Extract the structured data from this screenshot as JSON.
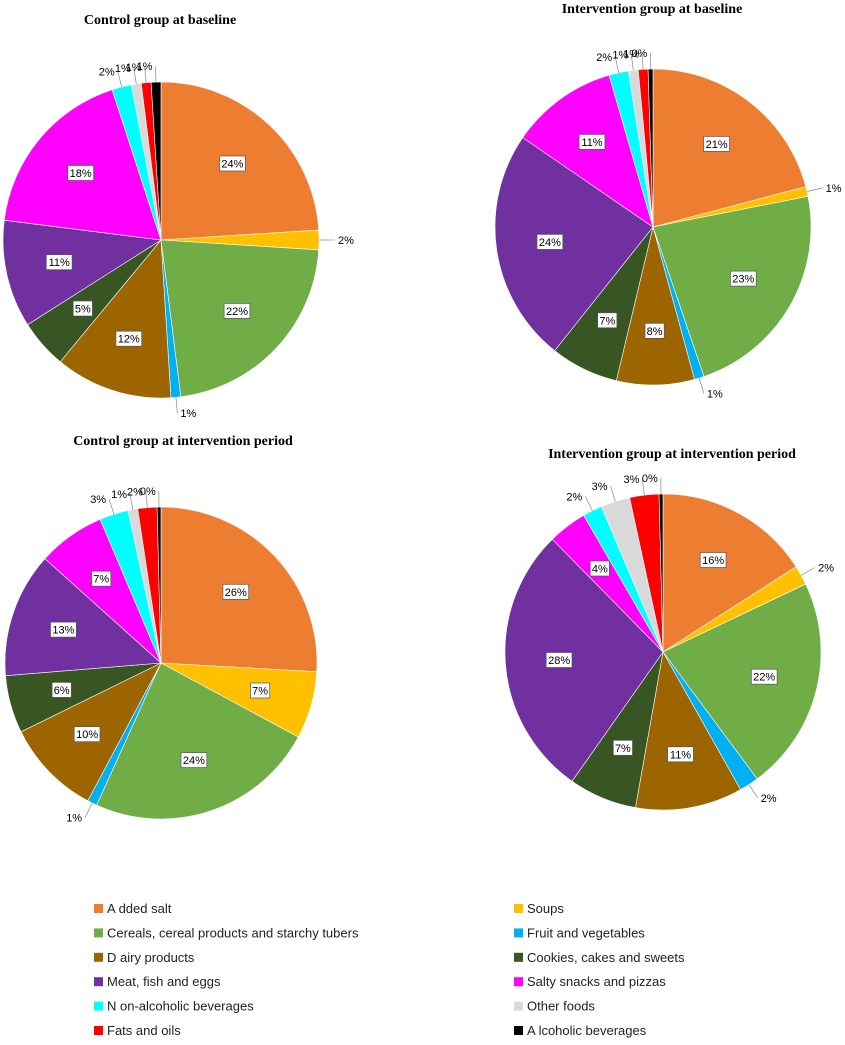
{
  "legend": {
    "categories": [
      {
        "name": "A dded salt",
        "color": "#ED7D31"
      },
      {
        "name": "Soups",
        "color": "#FFC000"
      },
      {
        "name": "Cereals, cereal products and starchy tubers",
        "color": "#70AD47"
      },
      {
        "name": "Fruit and vegetables",
        "color": "#00B0F0"
      },
      {
        "name": "D airy products",
        "color": "#9C6500"
      },
      {
        "name": "Cookies, cakes and sweets",
        "color": "#375623"
      },
      {
        "name": "Meat, fish and eggs",
        "color": "#7030A0"
      },
      {
        "name": "Salty snacks  and pizzas",
        "color": "#FF00FF"
      },
      {
        "name": "N on-alcoholic beverages",
        "color": "#00FFFF"
      },
      {
        "name": "Other foods",
        "color": "#D9D9D9"
      },
      {
        "name": "Fats and oils",
        "color": "#FF0000"
      },
      {
        "name": "A lcoholic beverages",
        "color": "#000000"
      }
    ]
  },
  "chart_data": [
    {
      "type": "pie",
      "title": "Control group at baseline",
      "values": [
        24,
        2,
        22,
        1,
        12,
        5,
        11,
        18,
        2,
        1,
        1,
        1
      ],
      "labels": [
        "24%",
        "2%",
        "22%",
        "1%",
        "12%",
        "5%",
        "11%",
        "18%",
        "2%",
        "1%",
        "1%",
        "1%"
      ]
    },
    {
      "type": "pie",
      "title": "Intervention group at baseline",
      "values": [
        21,
        1,
        23,
        1,
        8,
        7,
        24,
        11,
        2,
        1,
        1,
        0.5
      ],
      "labels": [
        "21%",
        "1%",
        "23%",
        "1%",
        "8%",
        "7%",
        "24%",
        "11%",
        "2%",
        "1%",
        "1%",
        "0%"
      ]
    },
    {
      "type": "pie",
      "title": "Control group at intervention period",
      "values": [
        26,
        7,
        24,
        1,
        10,
        6,
        13,
        7,
        3,
        1,
        2,
        0.4
      ],
      "labels": [
        "26%",
        "7%",
        "24%",
        "1%",
        "10%",
        "6%",
        "13%",
        "7%",
        "3%",
        "1%",
        "2%",
        "0%"
      ]
    },
    {
      "type": "pie",
      "title": "Intervention group at intervention period",
      "values": [
        16,
        2,
        22,
        2,
        11,
        7,
        28,
        4,
        2,
        3,
        3,
        0.4
      ],
      "labels": [
        "16%",
        "2%",
        "22%",
        "2%",
        "11%",
        "7%",
        "28%",
        "4%",
        "2%",
        "3%",
        "3%",
        "0%"
      ]
    }
  ]
}
